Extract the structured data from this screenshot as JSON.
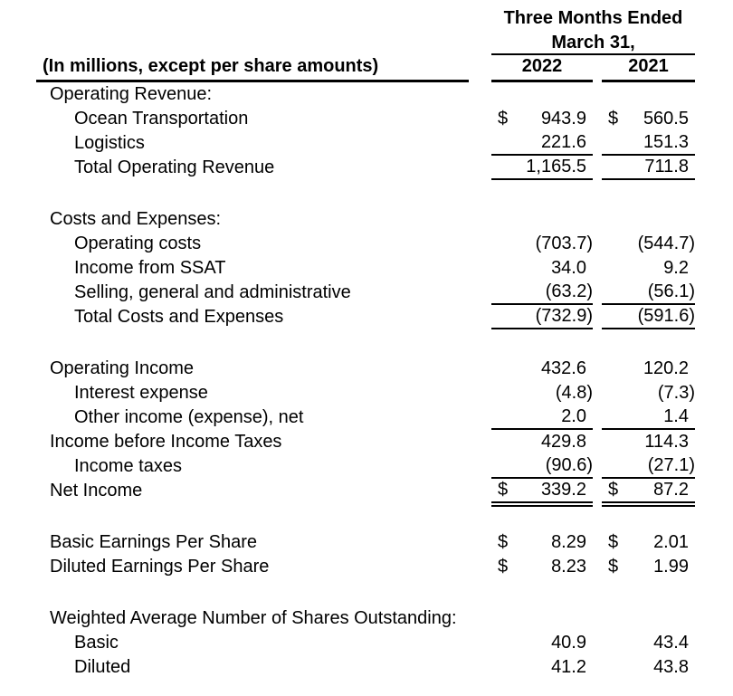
{
  "header": {
    "period_line1": "Three Months Ended",
    "period_line2": "March 31,",
    "note": "(In millions, except per share amounts)",
    "col_2022": "2022",
    "col_2021": "2021"
  },
  "colors": {
    "text": "#000000",
    "background": "#ffffff",
    "rule": "#000000"
  },
  "rows": [
    {
      "label": "Operating Revenue:",
      "indent": 0,
      "usd_2022": "",
      "v_2022": "",
      "usd_2021": "",
      "v_2021": "",
      "rule": "none"
    },
    {
      "label": "Ocean Transportation",
      "indent": 1,
      "usd_2022": "$",
      "v_2022": "943.9",
      "usd_2021": "$",
      "v_2021": "560.5",
      "rule": "none"
    },
    {
      "label": "Logistics",
      "indent": 1,
      "usd_2022": "",
      "v_2022": "221.6",
      "usd_2021": "",
      "v_2021": "151.3",
      "rule": "single"
    },
    {
      "label": "Total Operating Revenue",
      "indent": 1,
      "usd_2022": "",
      "v_2022": "1,165.5",
      "usd_2021": "",
      "v_2021": "711.8",
      "rule": "single"
    },
    {
      "type": "gap"
    },
    {
      "label": "Costs and Expenses:",
      "indent": 0,
      "usd_2022": "",
      "v_2022": "",
      "usd_2021": "",
      "v_2021": "",
      "rule": "none"
    },
    {
      "label": "Operating costs",
      "indent": 1,
      "usd_2022": "",
      "v_2022": "(703.7)",
      "usd_2021": "",
      "v_2021": "(544.7)",
      "rule": "none"
    },
    {
      "label": "Income from SSAT",
      "indent": 1,
      "usd_2022": "",
      "v_2022": "34.0",
      "usd_2021": "",
      "v_2021": "9.2",
      "rule": "none"
    },
    {
      "label": "Selling, general and administrative",
      "indent": 1,
      "usd_2022": "",
      "v_2022": "(63.2)",
      "usd_2021": "",
      "v_2021": "(56.1)",
      "rule": "single"
    },
    {
      "label": "Total Costs and Expenses",
      "indent": 1,
      "usd_2022": "",
      "v_2022": "(732.9)",
      "usd_2021": "",
      "v_2021": "(591.6)",
      "rule": "single"
    },
    {
      "type": "gap"
    },
    {
      "label": "Operating Income",
      "indent": 0,
      "usd_2022": "",
      "v_2022": "432.6",
      "usd_2021": "",
      "v_2021": "120.2",
      "rule": "none"
    },
    {
      "label": "Interest expense",
      "indent": 1,
      "usd_2022": "",
      "v_2022": "(4.8)",
      "usd_2021": "",
      "v_2021": "(7.3)",
      "rule": "none"
    },
    {
      "label": "Other income (expense), net",
      "indent": 1,
      "usd_2022": "",
      "v_2022": "2.0",
      "usd_2021": "",
      "v_2021": "1.4",
      "rule": "single"
    },
    {
      "label": "Income before Income Taxes",
      "indent": 0,
      "usd_2022": "",
      "v_2022": "429.8",
      "usd_2021": "",
      "v_2021": "114.3",
      "rule": "none"
    },
    {
      "label": "Income taxes",
      "indent": 1,
      "usd_2022": "",
      "v_2022": "(90.6)",
      "usd_2021": "",
      "v_2021": "(27.1)",
      "rule": "single"
    },
    {
      "label": "Net Income",
      "indent": 0,
      "usd_2022": "$",
      "v_2022": "339.2",
      "usd_2021": "$",
      "v_2021": "87.2",
      "rule": "double"
    },
    {
      "type": "gap"
    },
    {
      "label": "Basic Earnings Per Share",
      "indent": 0,
      "usd_2022": "$",
      "v_2022": "8.29",
      "usd_2021": "$",
      "v_2021": "2.01",
      "rule": "none"
    },
    {
      "label": "Diluted Earnings Per Share",
      "indent": 0,
      "usd_2022": "$",
      "v_2022": "8.23",
      "usd_2021": "$",
      "v_2021": "1.99",
      "rule": "none"
    },
    {
      "type": "gap"
    },
    {
      "label": "Weighted Average Number of Shares Outstanding:",
      "indent": 0,
      "usd_2022": "",
      "v_2022": "",
      "usd_2021": "",
      "v_2021": "",
      "rule": "none"
    },
    {
      "label": "Basic",
      "indent": 1,
      "usd_2022": "",
      "v_2022": "40.9",
      "usd_2021": "",
      "v_2021": "43.4",
      "rule": "none"
    },
    {
      "label": "Diluted",
      "indent": 1,
      "usd_2022": "",
      "v_2022": "41.2",
      "usd_2021": "",
      "v_2021": "43.8",
      "rule": "none"
    }
  ]
}
